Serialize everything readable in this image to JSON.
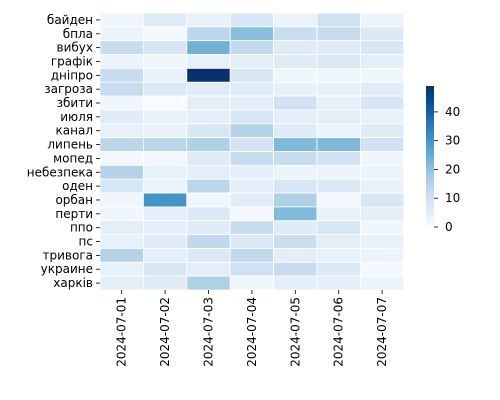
{
  "chart_data": {
    "type": "heatmap",
    "title": "",
    "xlabel": "",
    "ylabel": "",
    "x": [
      "2024-07-01",
      "2024-07-02",
      "2024-07-03",
      "2024-07-04",
      "2024-07-05",
      "2024-07-06",
      "2024-07-07"
    ],
    "y": [
      "байден",
      "бпла",
      "вибух",
      "графік",
      "дніпро",
      "загроза",
      "збити",
      "июля",
      "канал",
      "липень",
      "мопед",
      "небезпека",
      "оден",
      "орбан",
      "перти",
      "ппо",
      "пс",
      "тривога",
      "украине",
      "харків"
    ],
    "values": [
      [
        2,
        6,
        4,
        8,
        3,
        10,
        3
      ],
      [
        3,
        1,
        14,
        21,
        11,
        12,
        7
      ],
      [
        12,
        8,
        24,
        13,
        6,
        6,
        8
      ],
      [
        3,
        2,
        4,
        5,
        6,
        7,
        5
      ],
      [
        12,
        4,
        49,
        8,
        2,
        2,
        2
      ],
      [
        12,
        7,
        6,
        6,
        4,
        4,
        6
      ],
      [
        2,
        0,
        5,
        5,
        10,
        4,
        8
      ],
      [
        6,
        4,
        5,
        8,
        5,
        5,
        4
      ],
      [
        4,
        4,
        8,
        15,
        6,
        3,
        6
      ],
      [
        14,
        14,
        16,
        9,
        22,
        22,
        10
      ],
      [
        1,
        1,
        6,
        12,
        12,
        10,
        2
      ],
      [
        15,
        4,
        5,
        5,
        3,
        3,
        3
      ],
      [
        8,
        3,
        14,
        5,
        8,
        7,
        4
      ],
      [
        2,
        30,
        2,
        6,
        16,
        1,
        8
      ],
      [
        2,
        5,
        7,
        1,
        22,
        4,
        5
      ],
      [
        5,
        5,
        6,
        12,
        6,
        8,
        2
      ],
      [
        4,
        6,
        13,
        7,
        11,
        5,
        4
      ],
      [
        15,
        5,
        7,
        13,
        5,
        4,
        3
      ],
      [
        4,
        8,
        5,
        10,
        12,
        7,
        1
      ],
      [
        5,
        6,
        16,
        2,
        5,
        5,
        3
      ]
    ],
    "colorbar": {
      "ticks": [
        0,
        10,
        20,
        30,
        40
      ],
      "range": [
        0,
        49
      ]
    },
    "colormap": [
      "#f7fbff",
      "#deebf7",
      "#c6dbef",
      "#9ecae1",
      "#6baed6",
      "#4292c6",
      "#2171b5",
      "#08519c",
      "#08306b"
    ],
    "grid_line_color": "#ffffff"
  }
}
